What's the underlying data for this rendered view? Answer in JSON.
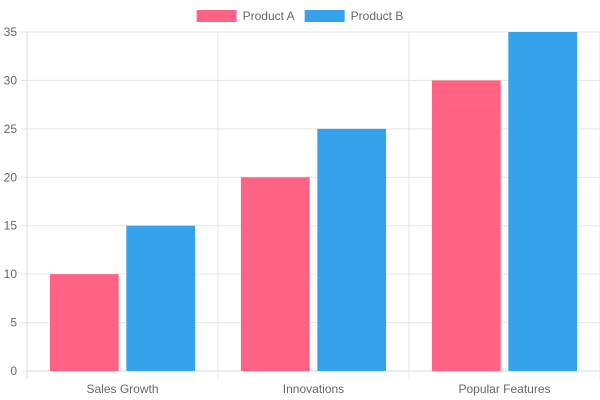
{
  "chart_data": {
    "type": "bar",
    "categories": [
      "Sales Growth",
      "Innovations",
      "Popular Features"
    ],
    "series": [
      {
        "name": "Product A",
        "values": [
          10,
          20,
          30
        ],
        "color": "#ff6384"
      },
      {
        "name": "Product B",
        "values": [
          15,
          25,
          35
        ],
        "color": "#36a2eb"
      }
    ],
    "ylim": [
      0,
      35
    ],
    "yticks": [
      0,
      5,
      10,
      15,
      20,
      25,
      30,
      35
    ],
    "grid": true,
    "legend_position": "top",
    "title": "",
    "xlabel": "",
    "ylabel": ""
  },
  "colors": {
    "grid": "#e5e5e5",
    "axis": "#d9d9d9",
    "text": "#666666"
  }
}
